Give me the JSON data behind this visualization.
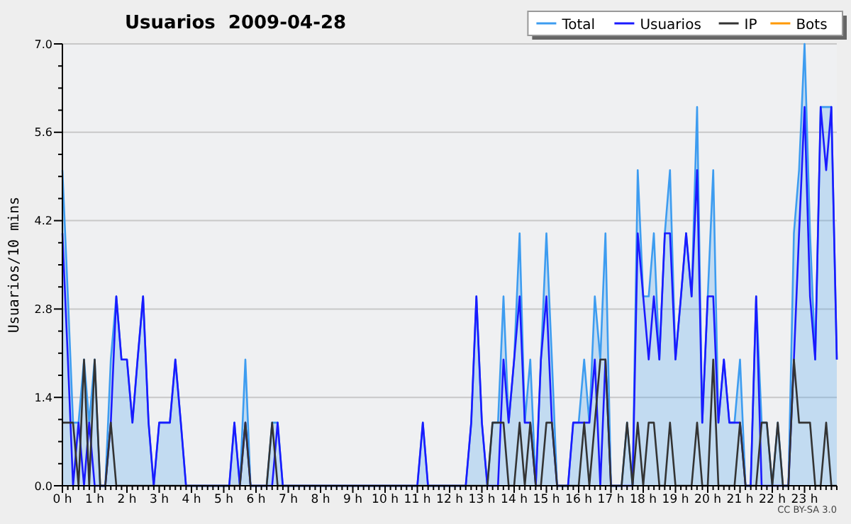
{
  "chart_data": {
    "type": "line",
    "title": "Usuarios  2009-04-28",
    "ylabel": "Usuarios/10 mins",
    "annotations": [
      "CC BY-SA 3.0"
    ],
    "x": [
      0,
      0.17,
      0.33,
      0.5,
      0.67,
      0.83,
      1,
      1.17,
      1.33,
      1.5,
      1.67,
      1.83,
      2,
      2.17,
      2.33,
      2.5,
      2.67,
      2.83,
      3,
      3.17,
      3.33,
      3.5,
      3.67,
      3.83,
      4,
      4.17,
      4.33,
      4.5,
      4.67,
      4.83,
      5,
      5.17,
      5.33,
      5.5,
      5.67,
      5.83,
      6,
      6.17,
      6.33,
      6.5,
      6.67,
      6.83,
      7,
      7.17,
      7.33,
      7.5,
      7.67,
      7.83,
      8,
      8.17,
      8.33,
      8.5,
      8.67,
      8.83,
      9,
      9.17,
      9.33,
      9.5,
      9.67,
      9.83,
      10,
      10.17,
      10.33,
      10.5,
      10.67,
      10.83,
      11,
      11.17,
      11.33,
      11.5,
      11.67,
      11.83,
      12,
      12.17,
      12.33,
      12.5,
      12.67,
      12.83,
      13,
      13.17,
      13.33,
      13.5,
      13.67,
      13.83,
      14,
      14.17,
      14.33,
      14.5,
      14.67,
      14.83,
      15,
      15.17,
      15.33,
      15.5,
      15.67,
      15.83,
      16,
      16.17,
      16.33,
      16.5,
      16.67,
      16.83,
      17,
      17.17,
      17.33,
      17.5,
      17.67,
      17.83,
      18,
      18.17,
      18.33,
      18.5,
      18.67,
      18.83,
      19,
      19.17,
      19.33,
      19.5,
      19.67,
      19.83,
      20,
      20.17,
      20.33,
      20.5,
      20.67,
      20.83,
      21,
      21.17,
      21.33,
      21.5,
      21.67,
      21.83,
      22,
      22.17,
      22.33,
      22.5,
      22.67,
      22.83,
      23,
      23.17,
      23.33,
      23.5,
      23.67,
      23.83,
      24
    ],
    "series": [
      {
        "name": "Bots",
        "color": "#ff9900",
        "values": [
          null,
          null,
          null,
          null,
          null,
          null,
          null,
          null,
          null,
          null,
          null,
          null,
          null,
          null,
          null,
          null,
          null,
          null,
          null,
          null,
          null,
          null,
          null,
          null,
          null,
          null,
          null,
          null,
          null,
          null,
          null,
          null,
          null,
          null,
          null,
          null,
          null,
          null,
          null,
          null,
          null,
          null,
          null,
          null,
          null,
          null,
          null,
          null,
          null,
          null,
          null,
          null,
          null,
          null,
          null,
          null,
          null,
          null,
          null,
          null,
          null,
          null,
          null,
          null,
          null,
          null,
          null,
          null,
          null,
          null,
          null,
          null,
          null,
          null,
          null,
          null,
          null,
          null,
          null,
          null,
          null,
          null,
          null,
          null,
          null,
          null,
          null,
          null,
          null,
          null,
          null,
          null,
          null,
          null,
          null,
          null,
          null,
          null,
          null,
          null,
          null,
          null,
          null,
          null,
          null,
          null,
          null,
          null,
          null,
          null,
          null,
          null,
          null,
          null,
          null,
          null,
          null,
          null,
          null,
          null,
          null,
          null,
          null,
          null,
          null,
          null,
          null,
          null,
          null,
          null,
          null,
          null,
          null,
          null,
          null,
          null,
          null,
          null,
          null,
          null,
          null,
          null,
          null,
          null,
          null
        ]
      },
      {
        "name": "Total",
        "type": "area",
        "color": "#3d9cf0",
        "values": [
          5,
          3,
          1,
          1,
          2,
          1,
          2,
          0,
          0,
          2,
          3,
          2,
          2,
          1,
          2,
          3,
          1,
          0,
          1,
          1,
          1,
          2,
          1,
          0,
          0,
          0,
          0,
          0,
          0,
          0,
          0,
          0,
          1,
          0,
          2,
          0,
          0,
          0,
          0,
          1,
          1,
          0,
          0,
          0,
          0,
          0,
          0,
          0,
          0,
          0,
          0,
          0,
          0,
          0,
          0,
          0,
          0,
          0,
          0,
          0,
          0,
          0,
          0,
          0,
          0,
          0,
          0,
          1,
          0,
          0,
          0,
          0,
          0,
          0,
          0,
          0,
          1,
          3,
          1,
          0,
          1,
          1,
          3,
          1,
          2,
          4,
          1,
          2,
          0,
          2,
          4,
          2,
          0,
          0,
          0,
          1,
          1,
          2,
          1,
          3,
          2,
          4,
          0,
          0,
          0,
          1,
          0,
          5,
          3,
          3,
          4,
          2,
          4,
          5,
          2,
          3,
          4,
          3,
          6,
          1,
          3,
          5,
          1,
          2,
          1,
          1,
          2,
          0,
          0,
          3,
          1,
          1,
          0,
          1,
          0,
          0,
          4,
          5,
          7,
          4,
          2,
          6,
          6,
          6,
          2
        ]
      },
      {
        "name": "Usuarios",
        "color": "#1a1aff",
        "values": [
          4,
          2,
          0,
          1,
          0,
          1,
          0,
          0,
          0,
          1,
          3,
          2,
          2,
          1,
          2,
          3,
          1,
          0,
          1,
          1,
          1,
          2,
          1,
          0,
          0,
          0,
          0,
          0,
          0,
          0,
          0,
          0,
          1,
          0,
          1,
          0,
          0,
          0,
          0,
          0,
          1,
          0,
          0,
          0,
          0,
          0,
          0,
          0,
          0,
          0,
          0,
          0,
          0,
          0,
          0,
          0,
          0,
          0,
          0,
          0,
          0,
          0,
          0,
          0,
          0,
          0,
          0,
          1,
          0,
          0,
          0,
          0,
          0,
          0,
          0,
          0,
          1,
          3,
          1,
          0,
          0,
          0,
          2,
          1,
          2,
          3,
          1,
          1,
          0,
          2,
          3,
          1,
          0,
          0,
          0,
          1,
          1,
          1,
          1,
          2,
          0,
          2,
          0,
          0,
          0,
          0,
          0,
          4,
          3,
          2,
          3,
          2,
          4,
          4,
          2,
          3,
          4,
          3,
          5,
          1,
          3,
          3,
          1,
          2,
          1,
          1,
          1,
          0,
          0,
          3,
          0,
          0,
          0,
          0,
          0,
          0,
          2,
          4,
          6,
          3,
          2,
          6,
          5,
          6,
          2
        ]
      },
      {
        "name": "IP",
        "color": "#333333",
        "values": [
          1,
          1,
          1,
          0,
          2,
          0,
          2,
          0,
          0,
          1,
          0,
          0,
          0,
          0,
          0,
          0,
          0,
          0,
          0,
          0,
          0,
          0,
          0,
          0,
          0,
          0,
          0,
          0,
          0,
          0,
          0,
          0,
          0,
          0,
          1,
          0,
          0,
          0,
          0,
          1,
          0,
          0,
          0,
          0,
          0,
          0,
          0,
          0,
          0,
          0,
          0,
          0,
          0,
          0,
          0,
          0,
          0,
          0,
          0,
          0,
          0,
          0,
          0,
          0,
          0,
          0,
          0,
          0,
          0,
          0,
          0,
          0,
          0,
          0,
          0,
          0,
          0,
          0,
          0,
          0,
          1,
          1,
          1,
          0,
          0,
          1,
          0,
          1,
          0,
          0,
          1,
          1,
          0,
          0,
          0,
          0,
          0,
          1,
          0,
          1,
          2,
          2,
          0,
          0,
          0,
          1,
          0,
          1,
          0,
          1,
          1,
          0,
          0,
          1,
          0,
          0,
          0,
          0,
          1,
          0,
          0,
          2,
          0,
          0,
          0,
          0,
          1,
          0,
          0,
          0,
          1,
          1,
          0,
          1,
          0,
          0,
          2,
          1,
          1,
          1,
          0,
          0,
          1,
          0,
          0
        ]
      }
    ],
    "xlim": [
      0,
      24
    ],
    "xticks": [
      {
        "value": 0,
        "label": "0 h"
      },
      {
        "value": 1,
        "label": "1 h"
      },
      {
        "value": 2,
        "label": "2 h"
      },
      {
        "value": 3,
        "label": "3 h"
      },
      {
        "value": 4,
        "label": "4 h"
      },
      {
        "value": 5,
        "label": "5 h"
      },
      {
        "value": 6,
        "label": "6 h"
      },
      {
        "value": 7,
        "label": "7 h"
      },
      {
        "value": 8,
        "label": "8 h"
      },
      {
        "value": 9,
        "label": "9 h"
      },
      {
        "value": 10,
        "label": "10 h"
      },
      {
        "value": 11,
        "label": "11 h"
      },
      {
        "value": 12,
        "label": "12 h"
      },
      {
        "value": 13,
        "label": "13 h"
      },
      {
        "value": 14,
        "label": "14 h"
      },
      {
        "value": 15,
        "label": "15 h"
      },
      {
        "value": 16,
        "label": "16 h"
      },
      {
        "value": 17,
        "label": "17 h"
      },
      {
        "value": 18,
        "label": "18 h"
      },
      {
        "value": 19,
        "label": "19 h"
      },
      {
        "value": 20,
        "label": "20 h"
      },
      {
        "value": 21,
        "label": "21 h"
      },
      {
        "value": 22,
        "label": "22 h"
      },
      {
        "value": 23,
        "label": "23 h"
      }
    ],
    "ylim": [
      0,
      7
    ],
    "yticks": [
      {
        "value": 0,
        "label": "0.0"
      },
      1.4,
      2.8,
      4.2,
      5.6,
      {
        "value": 7,
        "label": "7.0"
      }
    ],
    "grid": "y",
    "legend": "top right",
    "marker": "none",
    "line_style": "solid"
  }
}
